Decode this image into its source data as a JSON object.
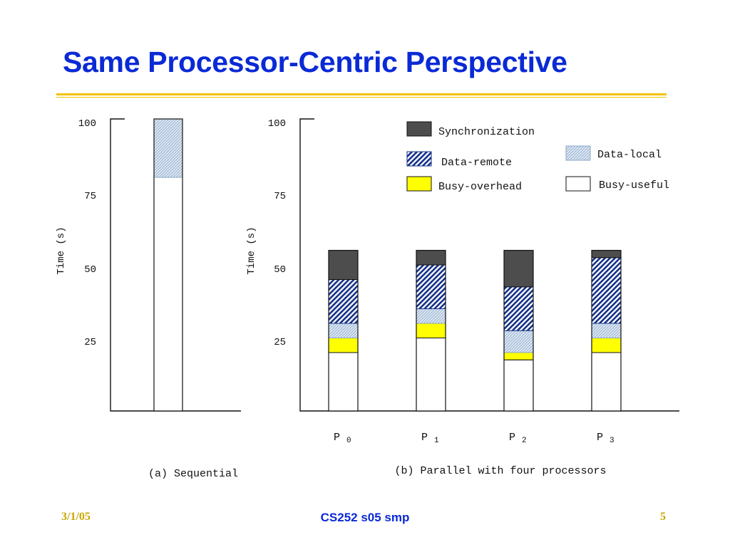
{
  "slide": {
    "title": "Same Processor-Centric Perspective",
    "footer": {
      "date": "3/1/05",
      "course": "CS252 s05 smp",
      "page": "5"
    },
    "accent_color": "#f2c200",
    "title_color": "#0a2ad6"
  },
  "chart_data": [
    {
      "id": "sequential",
      "type": "bar",
      "stacked": true,
      "caption": "(a) Sequential",
      "ylabel": "Time (s)",
      "yticks": [
        "100",
        "75",
        "50",
        "25"
      ],
      "ylim": [
        0,
        100
      ],
      "categories": [
        ""
      ],
      "series": [
        {
          "name": "Busy-useful",
          "values": [
            80
          ]
        },
        {
          "name": "Data-local",
          "values": [
            20
          ]
        }
      ]
    },
    {
      "id": "parallel",
      "type": "bar",
      "stacked": true,
      "caption": "(b) Parallel with four processors",
      "ylabel": "Time (s)",
      "yticks": [
        "100",
        "75",
        "50",
        "25"
      ],
      "ylim": [
        0,
        100
      ],
      "categories": [
        {
          "name": "P",
          "sub": "0"
        },
        {
          "name": "P",
          "sub": "1"
        },
        {
          "name": "P",
          "sub": "2"
        },
        {
          "name": "P",
          "sub": "3"
        }
      ],
      "series": [
        {
          "name": "Busy-useful",
          "values": [
            20,
            25,
            17.5,
            20
          ]
        },
        {
          "name": "Busy-overhead",
          "values": [
            5,
            5,
            2.5,
            5
          ]
        },
        {
          "name": "Data-local",
          "values": [
            5,
            5,
            7.5,
            5
          ]
        },
        {
          "name": "Data-remote",
          "values": [
            15,
            15,
            15,
            22.5
          ]
        },
        {
          "name": "Synchronization",
          "values": [
            10,
            5,
            12.5,
            2.5
          ]
        }
      ],
      "legend": {
        "placement": "top-right",
        "items": [
          {
            "label": "Synchronization",
            "style": "dark"
          },
          {
            "label": "Data-local",
            "style": "light-hatch"
          },
          {
            "label": "Data-remote",
            "style": "dense-hatch"
          },
          {
            "label": "Busy-overhead",
            "style": "yellow"
          },
          {
            "label": "Busy-useful",
            "style": "white"
          }
        ]
      }
    }
  ],
  "styles": {
    "Synchronization": "#4d4d4d",
    "Busy-overhead": "#ffff00",
    "Busy-useful": "#ffffff",
    "hatch_blue": "#17338a",
    "light_hatch_fill": "#dfe9f4",
    "light_hatch_line": "#8aa6c8"
  }
}
